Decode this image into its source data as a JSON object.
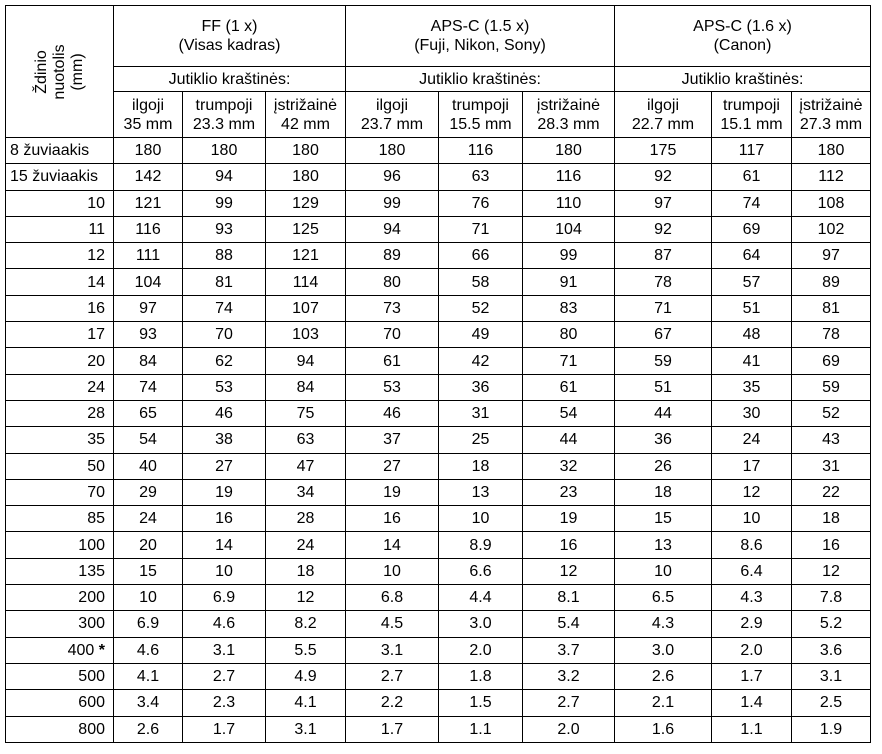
{
  "corner_label_line1": "Ždinio",
  "corner_label_line2": "nuotolis",
  "corner_label_line3": "(mm)",
  "groups": [
    {
      "title": "FF  (1 x)",
      "subtitle": "(Visas kadras)",
      "sides_label": "Jutiklio kraštinės:",
      "cols": [
        [
          "ilgoji",
          "35 mm"
        ],
        [
          "trumpoji",
          "23.3 mm"
        ],
        [
          "įstrižainė",
          "42 mm"
        ]
      ]
    },
    {
      "title": "APS-C (1.5 x)",
      "subtitle": "(Fuji, Nikon, Sony)",
      "sides_label": "Jutiklio kraštinės:",
      "cols": [
        [
          "ilgoji",
          "23.7 mm"
        ],
        [
          "trumpoji",
          "15.5 mm"
        ],
        [
          "įstrižainė",
          "28.3 mm"
        ]
      ]
    },
    {
      "title": "APS-C (1.6 x)",
      "subtitle": "(Canon)",
      "sides_label": "Jutiklio kraštinės:",
      "cols": [
        [
          "ilgoji",
          "22.7 mm"
        ],
        [
          "trumpoji",
          "15.1 mm"
        ],
        [
          "įstrižainė",
          "27.3 mm"
        ]
      ]
    }
  ],
  "rows": [
    {
      "focal": "8  žuviaakis",
      "align": "left",
      "v": [
        "180",
        "180",
        "180",
        "180",
        "116",
        "180",
        "175",
        "117",
        "180"
      ]
    },
    {
      "focal": "15 žuviaakis",
      "align": "left",
      "v": [
        "142",
        "94",
        "180",
        "96",
        "63",
        "116",
        "92",
        "61",
        "112"
      ]
    },
    {
      "focal": "10",
      "v": [
        "121",
        "99",
        "129",
        "99",
        "76",
        "110",
        "97",
        "74",
        "108"
      ]
    },
    {
      "focal": "11",
      "v": [
        "116",
        "93",
        "125",
        "94",
        "71",
        "104",
        "92",
        "69",
        "102"
      ]
    },
    {
      "focal": "12",
      "v": [
        "111",
        "88",
        "121",
        "89",
        "66",
        "99",
        "87",
        "64",
        "97"
      ]
    },
    {
      "focal": "14",
      "v": [
        "104",
        "81",
        "114",
        "80",
        "58",
        "91",
        "78",
        "57",
        "89"
      ]
    },
    {
      "focal": "16",
      "v": [
        "97",
        "74",
        "107",
        "73",
        "52",
        "83",
        "71",
        "51",
        "81"
      ]
    },
    {
      "focal": "17",
      "v": [
        "93",
        "70",
        "103",
        "70",
        "49",
        "80",
        "67",
        "48",
        "78"
      ]
    },
    {
      "focal": "20",
      "v": [
        "84",
        "62",
        "94",
        "61",
        "42",
        "71",
        "59",
        "41",
        "69"
      ]
    },
    {
      "focal": "24",
      "v": [
        "74",
        "53",
        "84",
        "53",
        "36",
        "61",
        "51",
        "35",
        "59"
      ]
    },
    {
      "focal": "28",
      "v": [
        "65",
        "46",
        "75",
        "46",
        "31",
        "54",
        "44",
        "30",
        "52"
      ]
    },
    {
      "focal": "35",
      "v": [
        "54",
        "38",
        "63",
        "37",
        "25",
        "44",
        "36",
        "24",
        "43"
      ]
    },
    {
      "focal": "50",
      "v": [
        "40",
        "27",
        "47",
        "27",
        "18",
        "32",
        "26",
        "17",
        "31"
      ]
    },
    {
      "focal": "70",
      "v": [
        "29",
        "19",
        "34",
        "19",
        "13",
        "23",
        "18",
        "12",
        "22"
      ]
    },
    {
      "focal": "85",
      "v": [
        "24",
        "16",
        "28",
        "16",
        "10",
        "19",
        "15",
        "10",
        "18"
      ]
    },
    {
      "focal": "100",
      "v": [
        "20",
        "14",
        "24",
        "14",
        "8.9",
        "16",
        "13",
        "8.6",
        "16"
      ]
    },
    {
      "focal": "135",
      "v": [
        "15",
        "10",
        "18",
        "10",
        "6.6",
        "12",
        "10",
        "6.4",
        "12"
      ]
    },
    {
      "focal": "200",
      "v": [
        "10",
        "6.9",
        "12",
        "6.8",
        "4.4",
        "8.1",
        "6.5",
        "4.3",
        "7.8"
      ]
    },
    {
      "focal": "300",
      "v": [
        "6.9",
        "4.6",
        "8.2",
        "4.5",
        "3.0",
        "5.4",
        "4.3",
        "2.9",
        "5.2"
      ]
    },
    {
      "focal": "400",
      "star": "*",
      "v": [
        "4.6",
        "3.1",
        "5.5",
        "3.1",
        "2.0",
        "3.7",
        "3.0",
        "2.0",
        "3.6"
      ]
    },
    {
      "focal": "500",
      "v": [
        "4.1",
        "2.7",
        "4.9",
        "2.7",
        "1.8",
        "3.2",
        "2.6",
        "1.7",
        "3.1"
      ]
    },
    {
      "focal": "600",
      "v": [
        "3.4",
        "2.3",
        "4.1",
        "2.2",
        "1.5",
        "2.7",
        "2.1",
        "1.4",
        "2.5"
      ]
    },
    {
      "focal": "800",
      "v": [
        "2.6",
        "1.7",
        "3.1",
        "1.7",
        "1.1",
        "2.0",
        "1.6",
        "1.1",
        "1.9"
      ]
    }
  ]
}
